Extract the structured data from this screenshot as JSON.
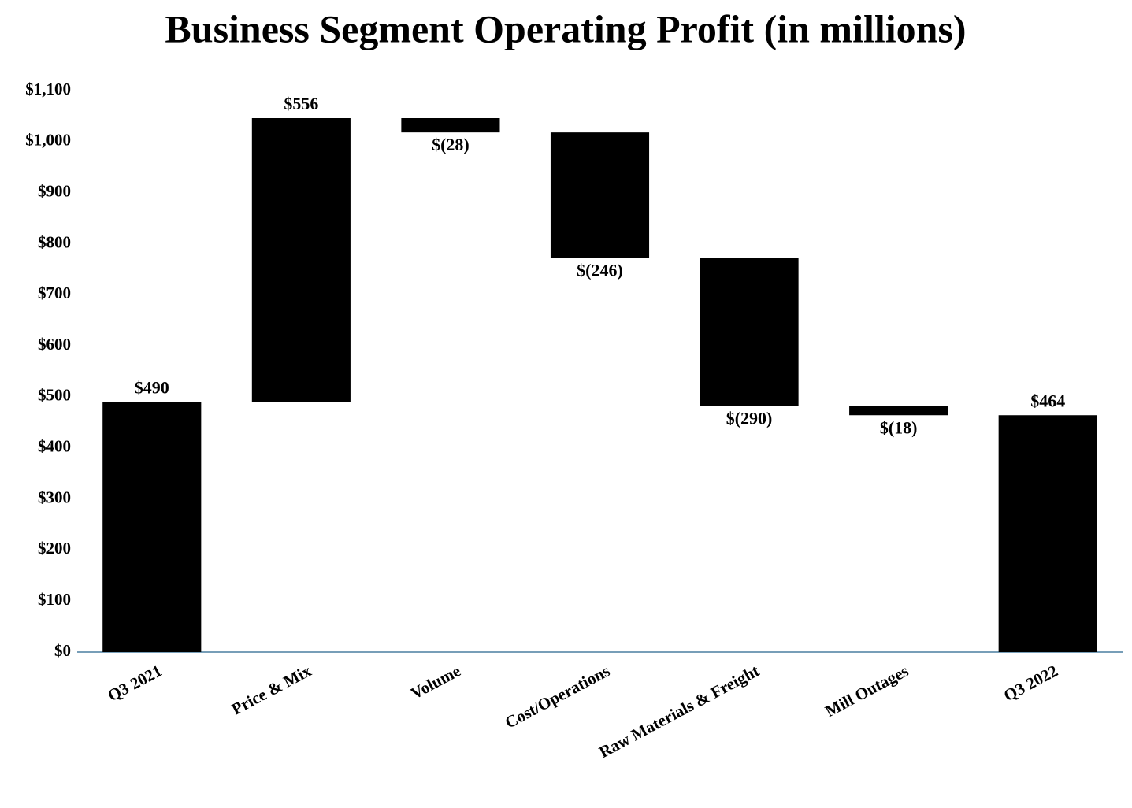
{
  "chart_data": {
    "type": "waterfall",
    "title": "Business Segment Operating Profit (in millions)",
    "categories": [
      "Q3 2021",
      "Price & Mix",
      "Volume",
      "Cost/Operations",
      "Raw Materials & Freight",
      "Mill Outages",
      "Q3 2022"
    ],
    "values": [
      490,
      556,
      -28,
      -246,
      -290,
      -18,
      464
    ],
    "value_labels": [
      "$490",
      "$556",
      "$(28)",
      "$(246)",
      "$(290)",
      "$(18)",
      "$464"
    ],
    "measure": [
      "absolute",
      "relative",
      "relative",
      "relative",
      "relative",
      "relative",
      "total"
    ],
    "color": "#000000",
    "ylim": [
      0,
      1100
    ],
    "yticks": [
      {
        "value": 0,
        "label": "$0"
      },
      {
        "value": 100,
        "label": "$100"
      },
      {
        "value": 200,
        "label": "$200"
      },
      {
        "value": 300,
        "label": "$300"
      },
      {
        "value": 400,
        "label": "$400"
      },
      {
        "value": 500,
        "label": "$500"
      },
      {
        "value": 600,
        "label": "$600"
      },
      {
        "value": 700,
        "label": "$700"
      },
      {
        "value": 800,
        "label": "$800"
      },
      {
        "value": 900,
        "label": "$900"
      },
      {
        "value": 1000,
        "label": "$1,000"
      },
      {
        "value": 1100,
        "label": "$1,100"
      }
    ],
    "grid": false
  }
}
